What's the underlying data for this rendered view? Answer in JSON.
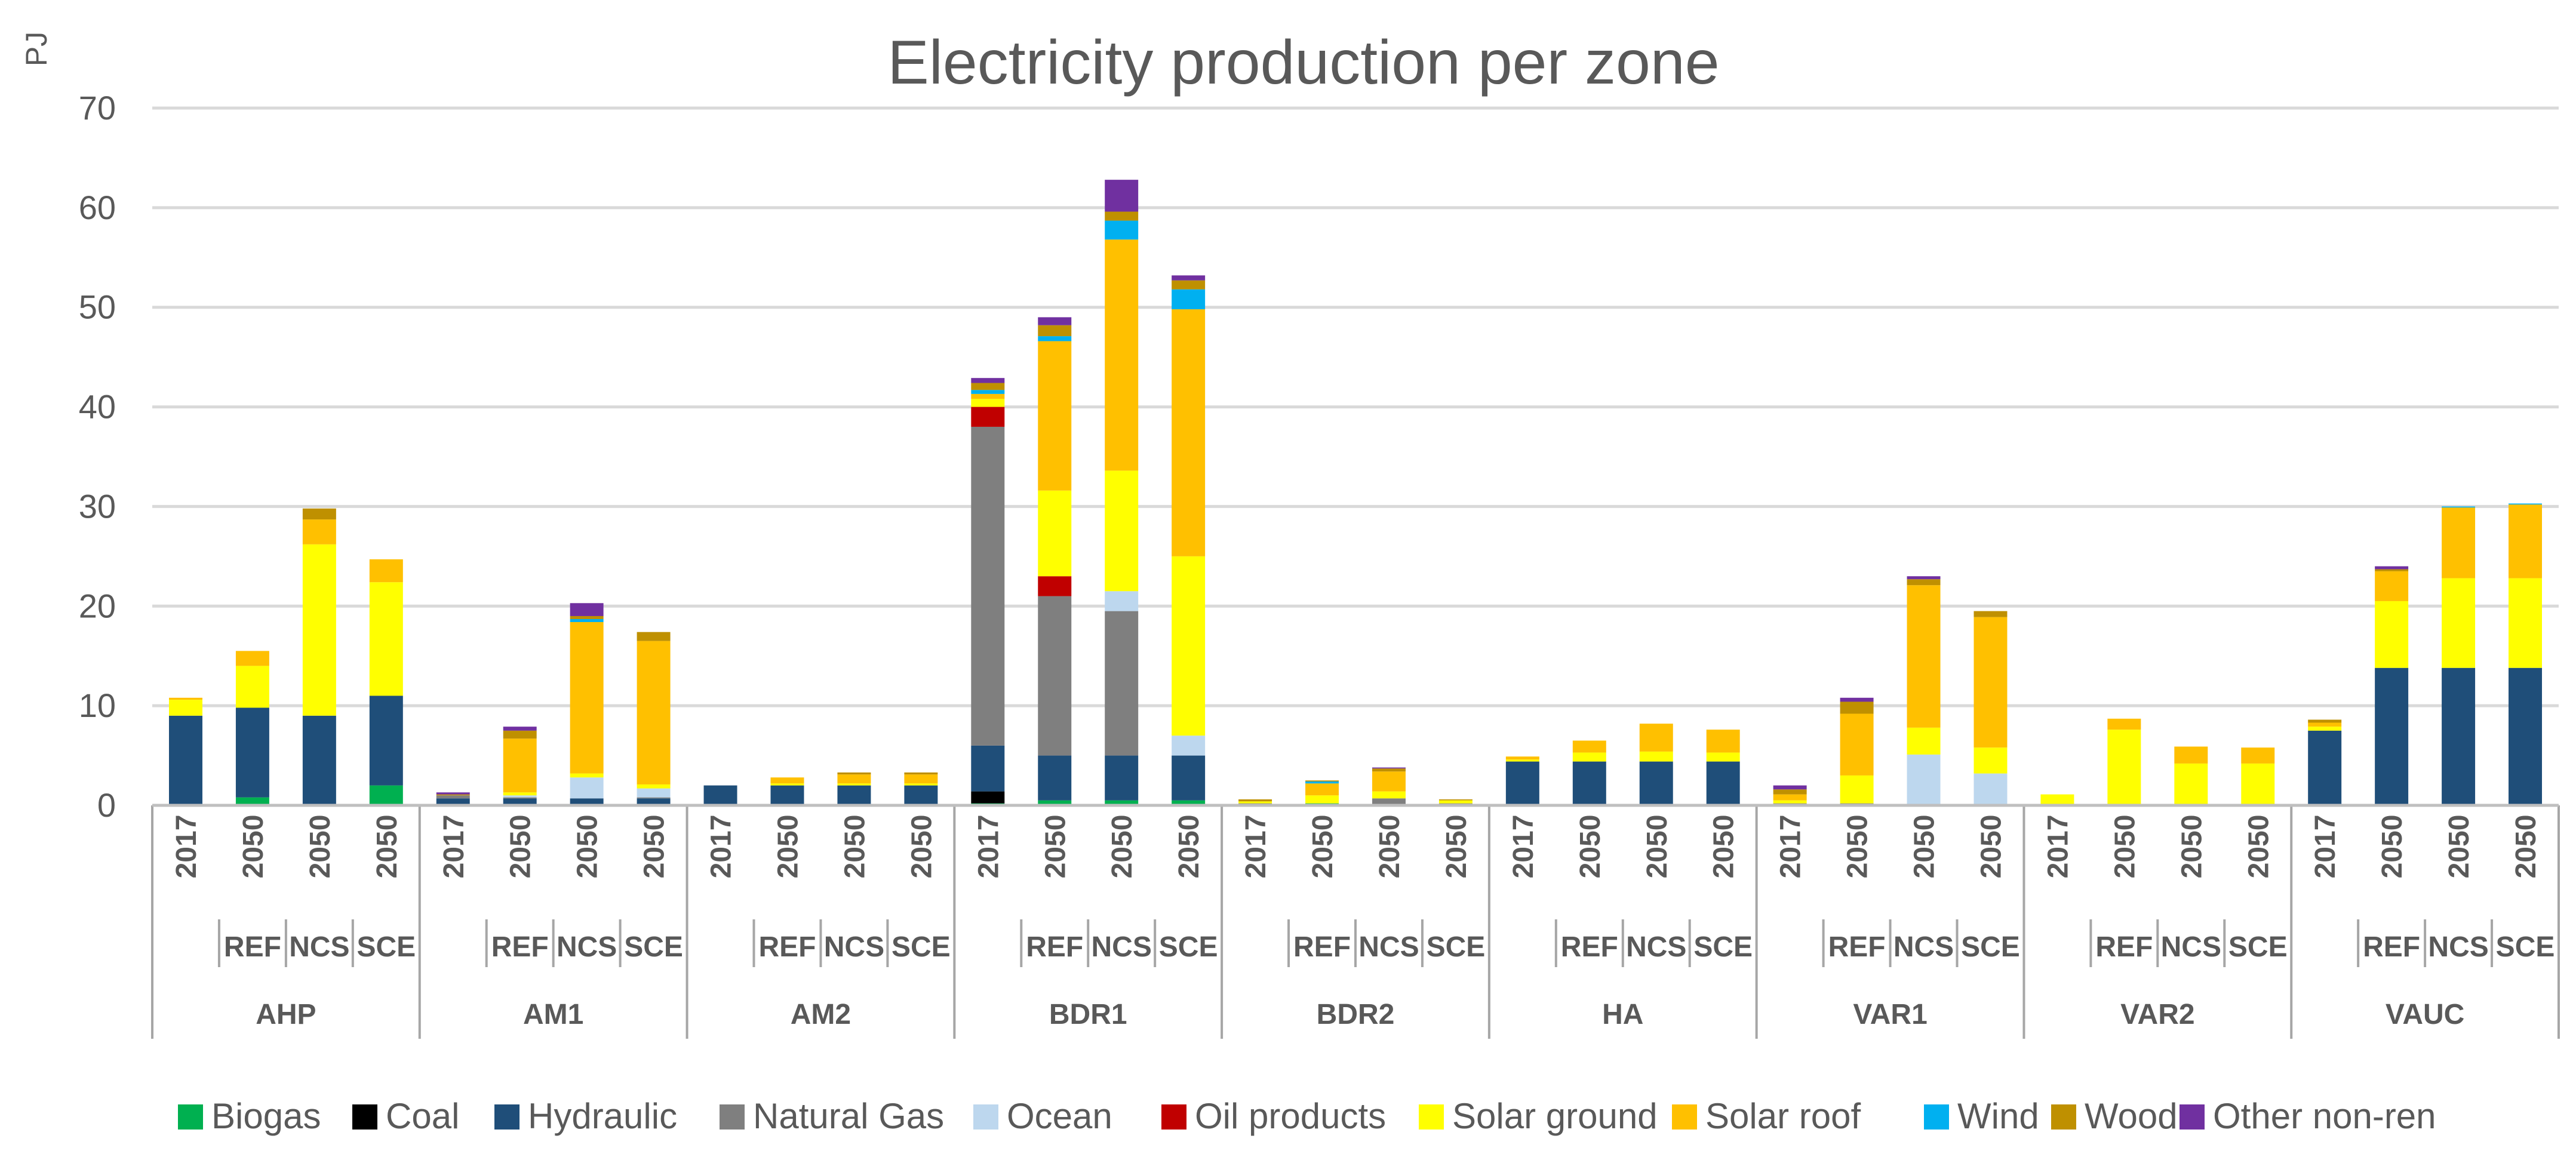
{
  "chart_data": {
    "type": "stacked-bar",
    "title": "Electricity production per zone",
    "ylabel": "PJ",
    "xlabel": "",
    "ylim": [
      0,
      70
    ],
    "yticks": [
      0,
      10,
      20,
      30,
      40,
      50,
      60,
      70
    ],
    "grid": true,
    "legend_position": "bottom",
    "technologies": [
      "Biogas",
      "Coal",
      "Hydraulic",
      "Natural Gas",
      "Ocean",
      "Oil products",
      "Solar ground",
      "Solar roof",
      "Wind",
      "Wood",
      "Other non-ren"
    ],
    "colors": {
      "Biogas": "#00b050",
      "Coal": "#000000",
      "Hydraulic": "#1f4e79",
      "Natural Gas": "#7f7f7f",
      "Ocean": "#bdd7ee",
      "Oil products": "#c00000",
      "Solar ground": "#ffff00",
      "Solar roof": "#ffc000",
      "Wind": "#00b0f0",
      "Wood": "#bf9000",
      "Other non-ren": "#7030a0"
    },
    "zones": [
      {
        "name": "AHP",
        "bars": [
          {
            "year": "2017",
            "scenario": "",
            "values": {
              "Biogas": 0,
              "Coal": 0,
              "Hydraulic": 9.0,
              "Natural Gas": 0,
              "Ocean": 0,
              "Oil products": 0,
              "Solar ground": 1.6,
              "Solar roof": 0.2,
              "Wind": 0,
              "Wood": 0,
              "Other non-ren": 0
            }
          },
          {
            "year": "2050",
            "scenario": "REF",
            "values": {
              "Biogas": 0.8,
              "Coal": 0,
              "Hydraulic": 9.0,
              "Natural Gas": 0,
              "Ocean": 0,
              "Oil products": 0,
              "Solar ground": 4.2,
              "Solar roof": 1.5,
              "Wind": 0,
              "Wood": 0,
              "Other non-ren": 0
            }
          },
          {
            "year": "2050",
            "scenario": "NCS",
            "values": {
              "Biogas": 0,
              "Coal": 0,
              "Hydraulic": 9.0,
              "Natural Gas": 0,
              "Ocean": 0,
              "Oil products": 0,
              "Solar ground": 17.2,
              "Solar roof": 2.5,
              "Wind": 0,
              "Wood": 1.1,
              "Other non-ren": 0
            }
          },
          {
            "year": "2050",
            "scenario": "SCE",
            "values": {
              "Biogas": 2.0,
              "Coal": 0,
              "Hydraulic": 9.0,
              "Natural Gas": 0,
              "Ocean": 0,
              "Oil products": 0,
              "Solar ground": 11.4,
              "Solar roof": 2.3,
              "Wind": 0,
              "Wood": 0,
              "Other non-ren": 0
            }
          }
        ]
      },
      {
        "name": "AM1",
        "bars": [
          {
            "year": "2017",
            "scenario": "",
            "values": {
              "Biogas": 0,
              "Coal": 0,
              "Hydraulic": 0.7,
              "Natural Gas": 0.3,
              "Ocean": 0,
              "Oil products": 0,
              "Solar ground": 0,
              "Solar roof": 0,
              "Wind": 0,
              "Wood": 0.1,
              "Other non-ren": 0.2
            }
          },
          {
            "year": "2050",
            "scenario": "REF",
            "values": {
              "Biogas": 0,
              "Coal": 0,
              "Hydraulic": 0.7,
              "Natural Gas": 0.1,
              "Ocean": 0.2,
              "Oil products": 0,
              "Solar ground": 0.3,
              "Solar roof": 5.4,
              "Wind": 0,
              "Wood": 0.8,
              "Other non-ren": 0.4
            }
          },
          {
            "year": "2050",
            "scenario": "NCS",
            "values": {
              "Biogas": 0,
              "Coal": 0,
              "Hydraulic": 0.7,
              "Natural Gas": 0,
              "Ocean": 2.1,
              "Oil products": 0,
              "Solar ground": 0.4,
              "Solar roof": 15.2,
              "Wind": 0.3,
              "Wood": 0.3,
              "Other non-ren": 1.3
            }
          },
          {
            "year": "2050",
            "scenario": "SCE",
            "values": {
              "Biogas": 0,
              "Coal": 0,
              "Hydraulic": 0.7,
              "Natural Gas": 0.1,
              "Ocean": 0.9,
              "Oil products": 0,
              "Solar ground": 0.4,
              "Solar roof": 14.4,
              "Wind": 0,
              "Wood": 0.9,
              "Other non-ren": 0
            }
          }
        ]
      },
      {
        "name": "AM2",
        "bars": [
          {
            "year": "2017",
            "scenario": "",
            "values": {
              "Biogas": 0,
              "Coal": 0,
              "Hydraulic": 2.0,
              "Natural Gas": 0,
              "Ocean": 0,
              "Oil products": 0,
              "Solar ground": 0,
              "Solar roof": 0,
              "Wind": 0,
              "Wood": 0,
              "Other non-ren": 0
            }
          },
          {
            "year": "2050",
            "scenario": "REF",
            "values": {
              "Biogas": 0,
              "Coal": 0,
              "Hydraulic": 2.0,
              "Natural Gas": 0,
              "Ocean": 0,
              "Oil products": 0,
              "Solar ground": 0.2,
              "Solar roof": 0.6,
              "Wind": 0,
              "Wood": 0,
              "Other non-ren": 0
            }
          },
          {
            "year": "2050",
            "scenario": "NCS",
            "values": {
              "Biogas": 0,
              "Coal": 0,
              "Hydraulic": 2.0,
              "Natural Gas": 0,
              "Ocean": 0,
              "Oil products": 0,
              "Solar ground": 0.2,
              "Solar roof": 0.9,
              "Wind": 0,
              "Wood": 0.2,
              "Other non-ren": 0
            }
          },
          {
            "year": "2050",
            "scenario": "SCE",
            "values": {
              "Biogas": 0,
              "Coal": 0,
              "Hydraulic": 2.0,
              "Natural Gas": 0,
              "Ocean": 0,
              "Oil products": 0,
              "Solar ground": 0.2,
              "Solar roof": 0.9,
              "Wind": 0,
              "Wood": 0.2,
              "Other non-ren": 0
            }
          }
        ]
      },
      {
        "name": "BDR1",
        "bars": [
          {
            "year": "2017",
            "scenario": "",
            "values": {
              "Biogas": 0.2,
              "Coal": 1.2,
              "Hydraulic": 4.6,
              "Natural Gas": 32.0,
              "Ocean": 0,
              "Oil products": 2.0,
              "Solar ground": 0.8,
              "Solar roof": 0.5,
              "Wind": 0.4,
              "Wood": 0.7,
              "Other non-ren": 0.5
            }
          },
          {
            "year": "2050",
            "scenario": "REF",
            "values": {
              "Biogas": 0.5,
              "Coal": 0,
              "Hydraulic": 4.5,
              "Natural Gas": 16.0,
              "Ocean": 0,
              "Oil products": 2.0,
              "Solar ground": 8.6,
              "Solar roof": 15.0,
              "Wind": 0.5,
              "Wood": 1.1,
              "Other non-ren": 0.8
            }
          },
          {
            "year": "2050",
            "scenario": "NCS",
            "values": {
              "Biogas": 0.5,
              "Coal": 0,
              "Hydraulic": 4.5,
              "Natural Gas": 14.5,
              "Ocean": 2.0,
              "Oil products": 0,
              "Solar ground": 12.1,
              "Solar roof": 23.2,
              "Wind": 1.9,
              "Wood": 0.9,
              "Other non-ren": 3.2
            }
          },
          {
            "year": "2050",
            "scenario": "SCE",
            "values": {
              "Biogas": 0.5,
              "Coal": 0,
              "Hydraulic": 4.5,
              "Natural Gas": 0,
              "Ocean": 2.0,
              "Oil products": 0,
              "Solar ground": 18.0,
              "Solar roof": 24.8,
              "Wind": 2.0,
              "Wood": 0.9,
              "Other non-ren": 0.5
            }
          }
        ]
      },
      {
        "name": "BDR2",
        "bars": [
          {
            "year": "2017",
            "scenario": "",
            "values": {
              "Biogas": 0,
              "Coal": 0,
              "Hydraulic": 0,
              "Natural Gas": 0.2,
              "Ocean": 0,
              "Oil products": 0,
              "Solar ground": 0.2,
              "Solar roof": 0,
              "Wind": 0,
              "Wood": 0.2,
              "Other non-ren": 0
            }
          },
          {
            "year": "2050",
            "scenario": "REF",
            "values": {
              "Biogas": 0.2,
              "Coal": 0,
              "Hydraulic": 0,
              "Natural Gas": 0,
              "Ocean": 0,
              "Oil products": 0,
              "Solar ground": 0.8,
              "Solar roof": 1.2,
              "Wind": 0.2,
              "Wood": 0.1,
              "Other non-ren": 0
            }
          },
          {
            "year": "2050",
            "scenario": "NCS",
            "values": {
              "Biogas": 0,
              "Coal": 0,
              "Hydraulic": 0,
              "Natural Gas": 0.7,
              "Ocean": 0,
              "Oil products": 0,
              "Solar ground": 0.7,
              "Solar roof": 2.0,
              "Wind": 0,
              "Wood": 0.3,
              "Other non-ren": 0.1
            }
          },
          {
            "year": "2050",
            "scenario": "SCE",
            "values": {
              "Biogas": 0,
              "Coal": 0,
              "Hydraulic": 0,
              "Natural Gas": 0.2,
              "Ocean": 0,
              "Oil products": 0,
              "Solar ground": 0.3,
              "Solar roof": 0,
              "Wind": 0,
              "Wood": 0.1,
              "Other non-ren": 0
            }
          }
        ]
      },
      {
        "name": "HA",
        "bars": [
          {
            "year": "2017",
            "scenario": "",
            "values": {
              "Biogas": 0,
              "Coal": 0,
              "Hydraulic": 4.4,
              "Natural Gas": 0,
              "Ocean": 0,
              "Oil products": 0,
              "Solar ground": 0.2,
              "Solar roof": 0.3,
              "Wind": 0,
              "Wood": 0,
              "Other non-ren": 0
            }
          },
          {
            "year": "2050",
            "scenario": "REF",
            "values": {
              "Biogas": 0,
              "Coal": 0,
              "Hydraulic": 4.4,
              "Natural Gas": 0,
              "Ocean": 0,
              "Oil products": 0,
              "Solar ground": 0.9,
              "Solar roof": 1.2,
              "Wind": 0,
              "Wood": 0,
              "Other non-ren": 0
            }
          },
          {
            "year": "2050",
            "scenario": "NCS",
            "values": {
              "Biogas": 0,
              "Coal": 0,
              "Hydraulic": 4.4,
              "Natural Gas": 0,
              "Ocean": 0,
              "Oil products": 0,
              "Solar ground": 1.0,
              "Solar roof": 2.8,
              "Wind": 0,
              "Wood": 0,
              "Other non-ren": 0
            }
          },
          {
            "year": "2050",
            "scenario": "SCE",
            "values": {
              "Biogas": 0,
              "Coal": 0,
              "Hydraulic": 4.4,
              "Natural Gas": 0,
              "Ocean": 0,
              "Oil products": 0,
              "Solar ground": 0.9,
              "Solar roof": 2.3,
              "Wind": 0,
              "Wood": 0,
              "Other non-ren": 0
            }
          }
        ]
      },
      {
        "name": "VAR1",
        "bars": [
          {
            "year": "2017",
            "scenario": "",
            "values": {
              "Biogas": 0,
              "Coal": 0,
              "Hydraulic": 0,
              "Natural Gas": 0.2,
              "Ocean": 0,
              "Oil products": 0,
              "Solar ground": 0.3,
              "Solar roof": 0.6,
              "Wind": 0,
              "Wood": 0.5,
              "Other non-ren": 0.4
            }
          },
          {
            "year": "2050",
            "scenario": "REF",
            "values": {
              "Biogas": 0,
              "Coal": 0,
              "Hydraulic": 0,
              "Natural Gas": 0.2,
              "Ocean": 0,
              "Oil products": 0,
              "Solar ground": 2.8,
              "Solar roof": 6.2,
              "Wind": 0,
              "Wood": 1.2,
              "Other non-ren": 0.4
            }
          },
          {
            "year": "2050",
            "scenario": "NCS",
            "values": {
              "Biogas": 0,
              "Coal": 0,
              "Hydraulic": 0,
              "Natural Gas": 0,
              "Ocean": 5.1,
              "Oil products": 0,
              "Solar ground": 2.7,
              "Solar roof": 14.3,
              "Wind": 0,
              "Wood": 0.6,
              "Other non-ren": 0.3
            }
          },
          {
            "year": "2050",
            "scenario": "SCE",
            "values": {
              "Biogas": 0,
              "Coal": 0,
              "Hydraulic": 0,
              "Natural Gas": 0,
              "Ocean": 3.2,
              "Oil products": 0,
              "Solar ground": 2.6,
              "Solar roof": 13.1,
              "Wind": 0,
              "Wood": 0.6,
              "Other non-ren": 0
            }
          }
        ]
      },
      {
        "name": "VAR2",
        "bars": [
          {
            "year": "2017",
            "scenario": "",
            "values": {
              "Biogas": 0,
              "Coal": 0,
              "Hydraulic": 0,
              "Natural Gas": 0,
              "Ocean": 0,
              "Oil products": 0,
              "Solar ground": 1.1,
              "Solar roof": 0,
              "Wind": 0,
              "Wood": 0,
              "Other non-ren": 0
            }
          },
          {
            "year": "2050",
            "scenario": "REF",
            "values": {
              "Biogas": 0,
              "Coal": 0,
              "Hydraulic": 0,
              "Natural Gas": 0,
              "Ocean": 0,
              "Oil products": 0,
              "Solar ground": 7.6,
              "Solar roof": 1.1,
              "Wind": 0,
              "Wood": 0,
              "Other non-ren": 0
            }
          },
          {
            "year": "2050",
            "scenario": "NCS",
            "values": {
              "Biogas": 0,
              "Coal": 0,
              "Hydraulic": 0,
              "Natural Gas": 0,
              "Ocean": 0,
              "Oil products": 0,
              "Solar ground": 4.2,
              "Solar roof": 1.7,
              "Wind": 0,
              "Wood": 0,
              "Other non-ren": 0
            }
          },
          {
            "year": "2050",
            "scenario": "SCE",
            "values": {
              "Biogas": 0,
              "Coal": 0,
              "Hydraulic": 0,
              "Natural Gas": 0,
              "Ocean": 0,
              "Oil products": 0,
              "Solar ground": 4.2,
              "Solar roof": 1.6,
              "Wind": 0,
              "Wood": 0,
              "Other non-ren": 0
            }
          }
        ]
      },
      {
        "name": "VAUC",
        "bars": [
          {
            "year": "2017",
            "scenario": "",
            "values": {
              "Biogas": 0,
              "Coal": 0,
              "Hydraulic": 7.5,
              "Natural Gas": 0,
              "Ocean": 0,
              "Oil products": 0,
              "Solar ground": 0.4,
              "Solar roof": 0.4,
              "Wind": 0,
              "Wood": 0.3,
              "Other non-ren": 0
            }
          },
          {
            "year": "2050",
            "scenario": "REF",
            "values": {
              "Biogas": 0,
              "Coal": 0,
              "Hydraulic": 13.8,
              "Natural Gas": 0,
              "Ocean": 0,
              "Oil products": 0,
              "Solar ground": 6.7,
              "Solar roof": 3.0,
              "Wind": 0,
              "Wood": 0.2,
              "Other non-ren": 0.3
            }
          },
          {
            "year": "2050",
            "scenario": "NCS",
            "values": {
              "Biogas": 0,
              "Coal": 0,
              "Hydraulic": 13.8,
              "Natural Gas": 0,
              "Ocean": 0,
              "Oil products": 0,
              "Solar ground": 9.0,
              "Solar roof": 7.1,
              "Wind": 0.1,
              "Wood": 0,
              "Other non-ren": 0
            }
          },
          {
            "year": "2050",
            "scenario": "SCE",
            "values": {
              "Biogas": 0,
              "Coal": 0,
              "Hydraulic": 13.8,
              "Natural Gas": 0,
              "Ocean": 0,
              "Oil products": 0,
              "Solar ground": 9.0,
              "Solar roof": 7.4,
              "Wind": 0.1,
              "Wood": 0,
              "Other non-ren": 0
            }
          }
        ]
      }
    ]
  }
}
